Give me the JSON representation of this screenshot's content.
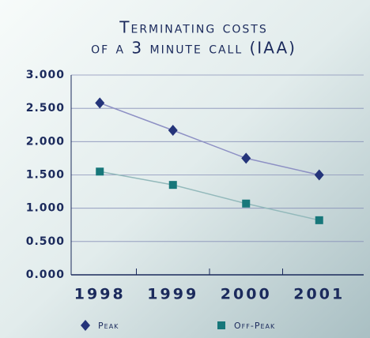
{
  "chart_data": {
    "type": "line",
    "title": [
      "Terminating costs",
      "of a 3 minute call (IAA)"
    ],
    "categories": [
      "1998",
      "1999",
      "2000",
      "2001"
    ],
    "series": [
      {
        "name": "Peak",
        "color": "#24347a",
        "line_color": "#8d90c4",
        "marker": "diamond",
        "values": [
          2.58,
          2.17,
          1.75,
          1.5
        ]
      },
      {
        "name": "Off-Peak",
        "color": "#17777a",
        "line_color": "#93b9bb",
        "marker": "square",
        "values": [
          1.55,
          1.35,
          1.07,
          0.82
        ]
      }
    ],
    "ylim": [
      0,
      3
    ],
    "yticks": [
      {
        "value": 0,
        "label": "0.000"
      },
      {
        "value": 0.5,
        "label": "0.500"
      },
      {
        "value": 1,
        "label": "1.000"
      },
      {
        "value": 1.5,
        "label": "1.500"
      },
      {
        "value": 2,
        "label": "2.000"
      },
      {
        "value": 2.5,
        "label": "2.500"
      },
      {
        "value": 3,
        "label": "3.000"
      }
    ],
    "grid": true
  }
}
